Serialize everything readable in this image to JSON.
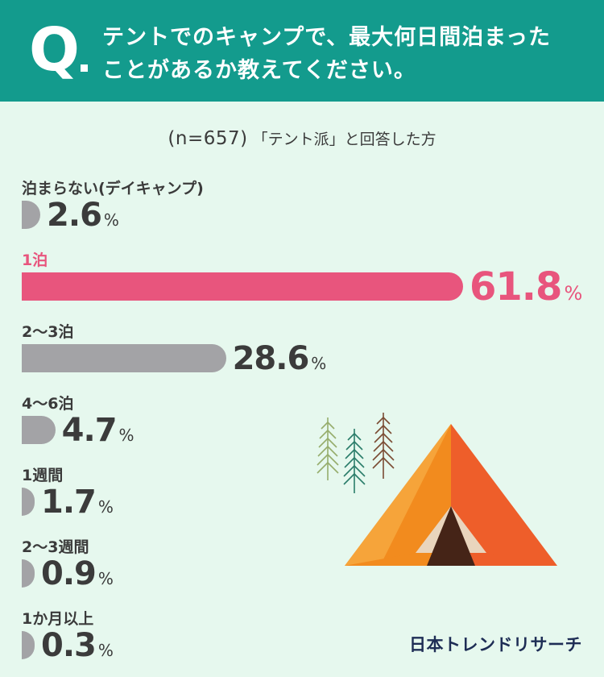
{
  "question": {
    "mark": "Q",
    "line1": "テントでのキャンプで、最大何日間泊まった",
    "line2": "ことがあるか教えてください。"
  },
  "subtitle": {
    "n_label": "(n=657)",
    "desc": "「テント派」と回答した方"
  },
  "chart_data": {
    "type": "bar",
    "orientation": "horizontal",
    "unit": "%",
    "categories": [
      "泊まらない(デイキャンプ)",
      "1泊",
      "2〜3泊",
      "4〜6泊",
      "1週間",
      "2〜3週間",
      "1か月以上"
    ],
    "values": [
      2.6,
      61.8,
      28.6,
      4.7,
      1.7,
      0.9,
      0.3
    ],
    "value_labels": [
      "2.6",
      "61.8",
      "28.6",
      "4.7",
      "1.7",
      "0.9",
      "0.3"
    ],
    "highlight_index": 1,
    "highlight_color": "#e8557d",
    "bar_color": "#a3a3a6"
  },
  "logo": "日本トレンドリサーチ",
  "colors": {
    "header": "#139b8d",
    "background": "#e6f8ee",
    "text": "#3b3b3b"
  },
  "illustration": {
    "icons": [
      "tent-icon",
      "pine-tree-icon"
    ]
  }
}
